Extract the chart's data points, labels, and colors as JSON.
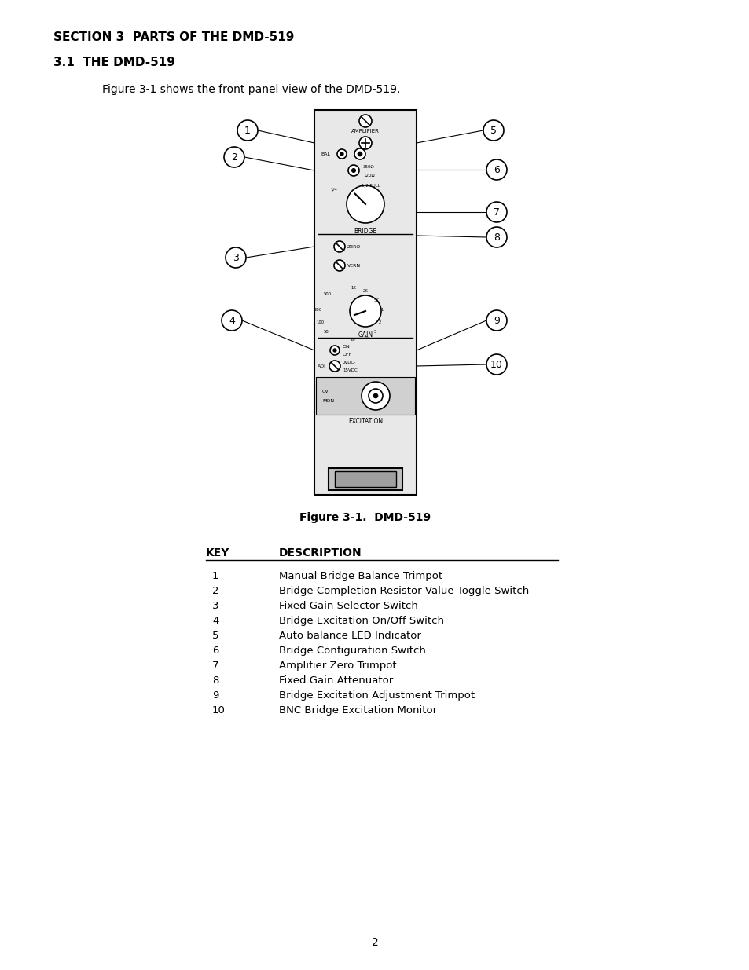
{
  "title": "SECTION 3  PARTS OF THE DMD-519",
  "subtitle": "3.1  THE DMD-519",
  "figure_caption": "Figure 3-1.  DMD-519",
  "intro_text": "Figure 3-1 shows the front panel view of the DMD-519.",
  "page_number": "2",
  "key_header": "KEY",
  "desc_header": "DESCRIPTION",
  "keys": [
    "1",
    "2",
    "3",
    "4",
    "5",
    "6",
    "7",
    "8",
    "9",
    "10"
  ],
  "descriptions": [
    "Manual Bridge Balance Trimpot",
    "Bridge Completion Resistor Value Toggle Switch",
    "Fixed Gain Selector Switch",
    "Bridge Excitation On/Off Switch",
    "Auto balance LED Indicator",
    "Bridge Configuration Switch",
    "Amplifier Zero Trimpot",
    "Fixed Gain Attenuator",
    "Bridge Excitation Adjustment Trimpot",
    "BNC Bridge Excitation Monitor"
  ],
  "bg_color": "#ffffff",
  "text_color": "#000000",
  "panel_color": "#e8e8e8",
  "panel_border": "#000000"
}
